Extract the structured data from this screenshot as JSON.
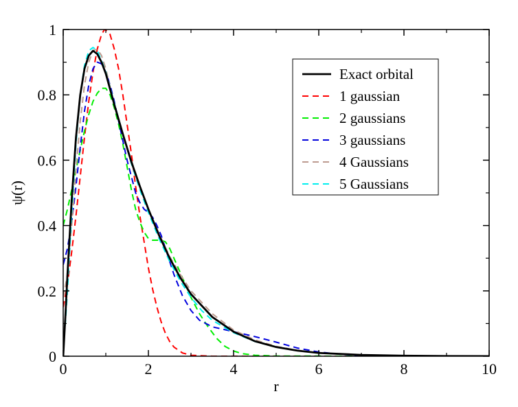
{
  "chart_data": {
    "type": "line",
    "xlabel": "r",
    "ylabel": "ψ(r)",
    "xlim": [
      0,
      10
    ],
    "ylim": [
      0,
      1
    ],
    "x_ticks": [
      "0",
      "2",
      "4",
      "6",
      "8",
      "10"
    ],
    "y_ticks": [
      "0",
      "0.2",
      "0.4",
      "0.6",
      "0.8",
      "1"
    ],
    "grid": false,
    "legend_position": "top-right",
    "series": [
      {
        "name": "Exact orbital",
        "color": "#000000",
        "style": "solid",
        "points": [
          [
            0,
            0
          ],
          [
            0.05,
            0.12
          ],
          [
            0.1,
            0.25
          ],
          [
            0.2,
            0.48
          ],
          [
            0.3,
            0.67
          ],
          [
            0.4,
            0.8
          ],
          [
            0.5,
            0.88
          ],
          [
            0.6,
            0.92
          ],
          [
            0.7,
            0.935
          ],
          [
            0.8,
            0.925
          ],
          [
            0.9,
            0.9
          ],
          [
            1.0,
            0.865
          ],
          [
            1.2,
            0.77
          ],
          [
            1.4,
            0.68
          ],
          [
            1.6,
            0.595
          ],
          [
            1.8,
            0.52
          ],
          [
            2.0,
            0.45
          ],
          [
            2.25,
            0.37
          ],
          [
            2.5,
            0.3
          ],
          [
            2.75,
            0.24
          ],
          [
            3.0,
            0.19
          ],
          [
            3.5,
            0.12
          ],
          [
            4.0,
            0.075
          ],
          [
            4.5,
            0.046
          ],
          [
            5.0,
            0.028
          ],
          [
            5.5,
            0.017
          ],
          [
            6.0,
            0.01
          ],
          [
            7.0,
            0.004
          ],
          [
            8.0,
            0.0015
          ],
          [
            9.0,
            0.0005
          ],
          [
            10.0,
            0.0002
          ]
        ]
      },
      {
        "name": "1 gaussian",
        "color": "#ff0000",
        "style": "dashed",
        "points": [
          [
            0,
            0.15
          ],
          [
            0.1,
            0.22
          ],
          [
            0.2,
            0.32
          ],
          [
            0.3,
            0.43
          ],
          [
            0.4,
            0.55
          ],
          [
            0.5,
            0.67
          ],
          [
            0.6,
            0.78
          ],
          [
            0.7,
            0.87
          ],
          [
            0.8,
            0.94
          ],
          [
            0.9,
            0.985
          ],
          [
            0.97,
            1.0
          ],
          [
            1.0,
            0.998
          ],
          [
            1.1,
            0.985
          ],
          [
            1.2,
            0.94
          ],
          [
            1.3,
            0.88
          ],
          [
            1.4,
            0.8
          ],
          [
            1.5,
            0.71
          ],
          [
            1.6,
            0.62
          ],
          [
            1.7,
            0.52
          ],
          [
            1.8,
            0.43
          ],
          [
            1.9,
            0.35
          ],
          [
            2.0,
            0.27
          ],
          [
            2.1,
            0.205
          ],
          [
            2.2,
            0.15
          ],
          [
            2.3,
            0.105
          ],
          [
            2.4,
            0.07
          ],
          [
            2.5,
            0.045
          ],
          [
            2.6,
            0.028
          ],
          [
            2.8,
            0.01
          ],
          [
            3.0,
            0.003
          ],
          [
            3.5,
            0.0
          ],
          [
            10.0,
            0.0
          ]
        ]
      },
      {
        "name": "2 gaussians",
        "color": "#00ee00",
        "style": "dashed",
        "points": [
          [
            0,
            0.4
          ],
          [
            0.1,
            0.45
          ],
          [
            0.2,
            0.51
          ],
          [
            0.3,
            0.57
          ],
          [
            0.4,
            0.63
          ],
          [
            0.5,
            0.69
          ],
          [
            0.6,
            0.74
          ],
          [
            0.7,
            0.78
          ],
          [
            0.8,
            0.805
          ],
          [
            0.9,
            0.82
          ],
          [
            1.0,
            0.82
          ],
          [
            1.1,
            0.8
          ],
          [
            1.2,
            0.76
          ],
          [
            1.3,
            0.71
          ],
          [
            1.4,
            0.65
          ],
          [
            1.5,
            0.58
          ],
          [
            1.6,
            0.51
          ],
          [
            1.7,
            0.45
          ],
          [
            1.8,
            0.41
          ],
          [
            1.9,
            0.38
          ],
          [
            2.0,
            0.36
          ],
          [
            2.1,
            0.355
          ],
          [
            2.2,
            0.355
          ],
          [
            2.3,
            0.355
          ],
          [
            2.4,
            0.35
          ],
          [
            2.5,
            0.33
          ],
          [
            2.6,
            0.3
          ],
          [
            2.8,
            0.24
          ],
          [
            3.0,
            0.18
          ],
          [
            3.2,
            0.13
          ],
          [
            3.4,
            0.09
          ],
          [
            3.6,
            0.055
          ],
          [
            3.8,
            0.03
          ],
          [
            4.0,
            0.016
          ],
          [
            4.2,
            0.008
          ],
          [
            4.5,
            0.003
          ],
          [
            5.0,
            0.0005
          ],
          [
            10.0,
            0.0
          ]
        ]
      },
      {
        "name": "3 gaussians",
        "color": "#0000dd",
        "style": "dashed",
        "points": [
          [
            0,
            0.28
          ],
          [
            0.1,
            0.33
          ],
          [
            0.2,
            0.41
          ],
          [
            0.3,
            0.52
          ],
          [
            0.4,
            0.64
          ],
          [
            0.5,
            0.75
          ],
          [
            0.6,
            0.83
          ],
          [
            0.7,
            0.88
          ],
          [
            0.8,
            0.9
          ],
          [
            0.9,
            0.895
          ],
          [
            1.0,
            0.87
          ],
          [
            1.1,
            0.83
          ],
          [
            1.2,
            0.78
          ],
          [
            1.3,
            0.72
          ],
          [
            1.4,
            0.66
          ],
          [
            1.5,
            0.6
          ],
          [
            1.6,
            0.55
          ],
          [
            1.7,
            0.5
          ],
          [
            1.8,
            0.47
          ],
          [
            1.9,
            0.45
          ],
          [
            2.0,
            0.44
          ],
          [
            2.1,
            0.425
          ],
          [
            2.2,
            0.4
          ],
          [
            2.3,
            0.37
          ],
          [
            2.4,
            0.33
          ],
          [
            2.5,
            0.29
          ],
          [
            2.6,
            0.25
          ],
          [
            2.8,
            0.185
          ],
          [
            3.0,
            0.14
          ],
          [
            3.2,
            0.11
          ],
          [
            3.5,
            0.09
          ],
          [
            4.0,
            0.075
          ],
          [
            4.5,
            0.06
          ],
          [
            5.0,
            0.043
          ],
          [
            5.5,
            0.025
          ],
          [
            6.0,
            0.013
          ],
          [
            6.5,
            0.006
          ],
          [
            7.0,
            0.002
          ],
          [
            8.0,
            0.0003
          ],
          [
            10.0,
            0.0
          ]
        ]
      },
      {
        "name": "4 Gaussians",
        "color": "#bc9a8e",
        "style": "dashed",
        "points": [
          [
            0,
            0.18
          ],
          [
            0.1,
            0.25
          ],
          [
            0.2,
            0.4
          ],
          [
            0.3,
            0.57
          ],
          [
            0.4,
            0.72
          ],
          [
            0.5,
            0.83
          ],
          [
            0.6,
            0.9
          ],
          [
            0.7,
            0.935
          ],
          [
            0.8,
            0.94
          ],
          [
            0.9,
            0.92
          ],
          [
            1.0,
            0.88
          ],
          [
            1.2,
            0.77
          ],
          [
            1.4,
            0.68
          ],
          [
            1.6,
            0.6
          ],
          [
            1.8,
            0.52
          ],
          [
            2.0,
            0.45
          ],
          [
            2.25,
            0.375
          ],
          [
            2.5,
            0.305
          ],
          [
            2.75,
            0.25
          ],
          [
            3.0,
            0.2
          ],
          [
            3.5,
            0.13
          ],
          [
            4.0,
            0.08
          ],
          [
            4.5,
            0.05
          ],
          [
            5.0,
            0.03
          ],
          [
            5.5,
            0.018
          ],
          [
            6.0,
            0.01
          ],
          [
            7.0,
            0.003
          ],
          [
            8.0,
            0.001
          ],
          [
            10.0,
            0.0
          ]
        ]
      },
      {
        "name": "5 Gaussians",
        "color": "#00eeee",
        "style": "dashed",
        "points": [
          [
            0,
            0.03
          ],
          [
            0.05,
            0.1
          ],
          [
            0.1,
            0.2
          ],
          [
            0.2,
            0.44
          ],
          [
            0.3,
            0.65
          ],
          [
            0.4,
            0.8
          ],
          [
            0.5,
            0.89
          ],
          [
            0.6,
            0.935
          ],
          [
            0.7,
            0.945
          ],
          [
            0.8,
            0.935
          ],
          [
            0.9,
            0.905
          ],
          [
            1.0,
            0.87
          ],
          [
            1.2,
            0.775
          ],
          [
            1.4,
            0.68
          ],
          [
            1.6,
            0.59
          ],
          [
            1.8,
            0.51
          ],
          [
            2.0,
            0.44
          ],
          [
            2.25,
            0.36
          ],
          [
            2.5,
            0.29
          ],
          [
            2.75,
            0.23
          ],
          [
            3.0,
            0.18
          ],
          [
            3.25,
            0.14
          ],
          [
            3.5,
            0.11
          ],
          [
            4.0,
            0.072
          ],
          [
            4.5,
            0.045
          ],
          [
            5.0,
            0.028
          ],
          [
            5.5,
            0.017
          ],
          [
            6.0,
            0.01
          ],
          [
            7.0,
            0.004
          ],
          [
            8.0,
            0.0015
          ],
          [
            10.0,
            0.0002
          ]
        ]
      }
    ]
  }
}
